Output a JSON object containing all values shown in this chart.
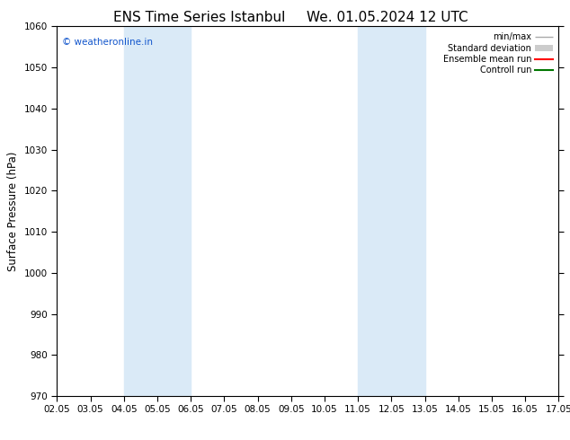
{
  "title_left": "ENS Time Series Istanbul",
  "title_right": "We. 01.05.2024 12 UTC",
  "ylabel": "Surface Pressure (hPa)",
  "ylim": [
    970,
    1060
  ],
  "yticks": [
    970,
    980,
    990,
    1000,
    1010,
    1020,
    1030,
    1040,
    1050,
    1060
  ],
  "xlim": [
    0,
    15
  ],
  "xtick_labels": [
    "02.05",
    "03.05",
    "04.05",
    "05.05",
    "06.05",
    "07.05",
    "08.05",
    "09.05",
    "10.05",
    "11.05",
    "12.05",
    "13.05",
    "14.05",
    "15.05",
    "16.05",
    "17.05"
  ],
  "xtick_positions": [
    0,
    1,
    2,
    3,
    4,
    5,
    6,
    7,
    8,
    9,
    10,
    11,
    12,
    13,
    14,
    15
  ],
  "shaded_bands": [
    {
      "x_start": 2,
      "x_end": 4
    },
    {
      "x_start": 9,
      "x_end": 11
    }
  ],
  "shaded_color": "#daeaf7",
  "watermark": "© weatheronline.in",
  "watermark_color": "#1155cc",
  "legend_entries": [
    {
      "label": "min/max",
      "color": "#aaaaaa",
      "lw": 1.0,
      "style": "minmax"
    },
    {
      "label": "Standard deviation",
      "color": "#cccccc",
      "lw": 5,
      "style": "band"
    },
    {
      "label": "Ensemble mean run",
      "color": "#ff0000",
      "lw": 1.5,
      "style": "line"
    },
    {
      "label": "Controll run",
      "color": "#007700",
      "lw": 1.5,
      "style": "line"
    }
  ],
  "bg_color": "#ffffff",
  "tick_fontsize": 7.5,
  "title_fontsize": 11,
  "ylabel_fontsize": 8.5
}
